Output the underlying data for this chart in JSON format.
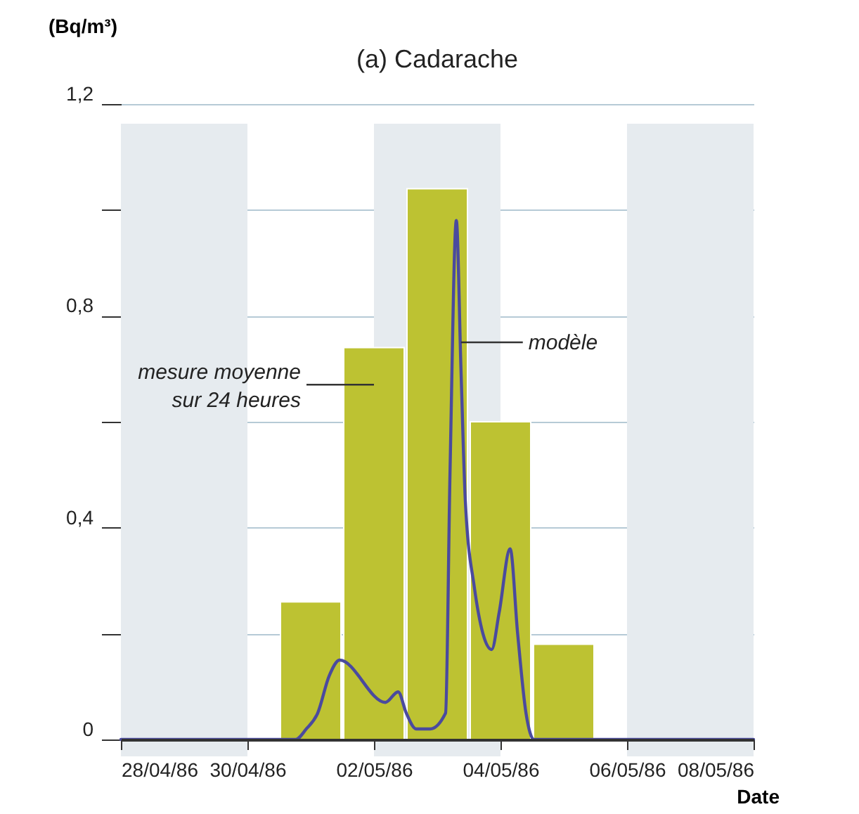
{
  "chart_data": {
    "type": "bar",
    "title": "(a) Cadarache",
    "xlabel": "Date",
    "ylabel": "(Bq/m³)",
    "series": [
      {
        "color": "#bdc232",
        "x": [
          "1986-05-01",
          "1986-05-02",
          "1986-05-03",
          "1986-05-04",
          "1986-05-05"
        ],
        "values": [
          0.26,
          0.74,
          1.04,
          0.6,
          0.18
        ]
      },
      {
        "type": "line",
        "color": "#4a4a9e",
        "x": [
          "1986-04-28",
          "1986-04-30T18:15",
          "1986-04-30T22:20",
          "1986-05-01T02:40",
          "1986-05-01T07:00",
          "1986-05-01T11:00",
          "1986-05-02T04:20",
          "1986-05-02T09:10",
          "1986-05-02T12:15",
          "1986-05-02T16:00",
          "1986-05-02T21:20",
          "1986-05-03T03:10",
          "1986-05-03T04:50",
          "1986-05-03T07:15",
          "1986-05-03T09:00",
          "1986-05-03T10:40",
          "1986-05-03T14:00",
          "1986-05-03T20:40",
          "1986-05-03T23:30",
          "1986-05-04T03:40",
          "1986-05-04T06:30",
          "1986-05-04T09:40",
          "1986-05-04T12:45",
          "1986-05-08"
        ],
        "values": [
          0,
          0,
          0.02,
          0.05,
          0.12,
          0.15,
          0.07,
          0.09,
          0.05,
          0.02,
          0.02,
          0.05,
          0.5,
          0.98,
          0.7,
          0.45,
          0.29,
          0.17,
          0.24,
          0.36,
          0.2,
          0.05,
          0,
          0
        ]
      }
    ],
    "xlim": [
      "1986-04-28",
      "1986-05-08"
    ],
    "xticks": [
      {
        "value": "1986-04-28",
        "label": "28/04/86"
      },
      {
        "value": "1986-04-30",
        "label": "30/04/86"
      },
      {
        "value": "1986-05-02",
        "label": "02/05/86"
      },
      {
        "value": "1986-05-04",
        "label": "04/05/86"
      },
      {
        "value": "1986-05-06",
        "label": "06/05/86"
      },
      {
        "value": "1986-05-08",
        "label": "08/05/86"
      }
    ],
    "ylim": [
      0,
      1.2
    ],
    "yticks": [
      {
        "value": 0,
        "label": "0"
      },
      {
        "value": 0.2,
        "label": null
      },
      {
        "value": 0.4,
        "label": "0,4"
      },
      {
        "value": 0.6,
        "label": null
      },
      {
        "value": 0.8,
        "label": "0,8"
      },
      {
        "value": 1.0,
        "label": null
      },
      {
        "value": 1.2,
        "label": "1,2"
      }
    ],
    "grid": "y",
    "bands": [
      {
        "axis": "x",
        "from": "1986-04-28",
        "to": "1986-04-30",
        "color": "#e6ebef"
      },
      {
        "axis": "x",
        "from": "1986-05-02",
        "to": "1986-05-04",
        "color": "#e6ebef"
      },
      {
        "axis": "x",
        "from": "1986-05-06",
        "to": "1986-05-08",
        "color": "#e6ebef"
      }
    ],
    "annotations": [
      {
        "text": "mesure moyenne\nsur 24 heures",
        "x": "1986-05-02",
        "y": 0.67
      },
      {
        "text": "modèle",
        "x": "1986-05-03T09:00",
        "y": 0.75
      }
    ]
  }
}
